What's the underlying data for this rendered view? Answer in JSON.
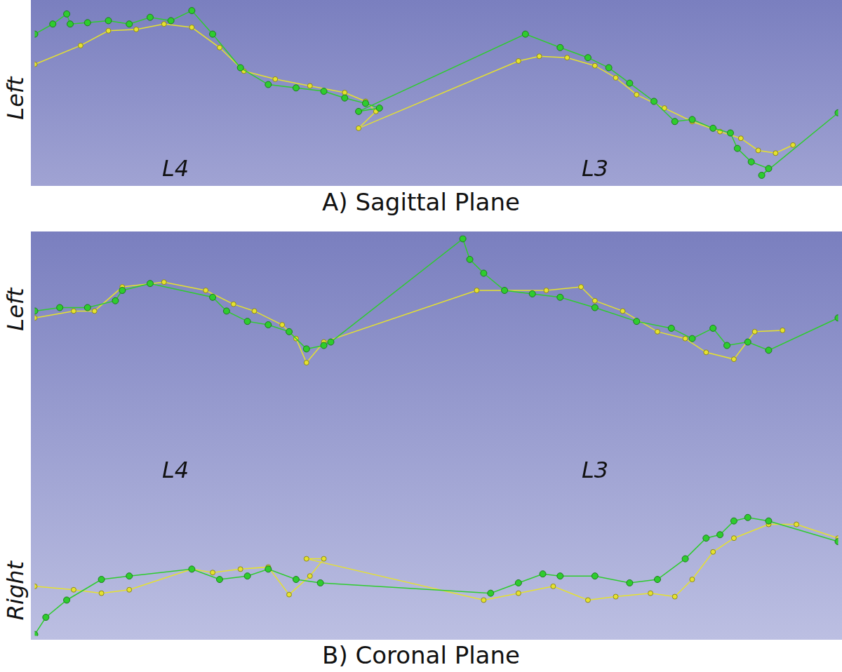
{
  "chart_data": [
    {
      "type": "scatter",
      "title": "A) Sagittal Plane",
      "side_labels": [
        "Left"
      ],
      "annotations": [
        "L4",
        "L3"
      ],
      "xlim": [
        0,
        1156
      ],
      "ylim": [
        0,
        265
      ],
      "tick_labels": false,
      "grid": false,
      "marker": "circle",
      "line_style": "solid",
      "series": [
        {
          "color": "#2ecc2e",
          "x": [
            0,
            26,
            46,
            51,
            76,
            106,
            136,
            166,
            196,
            226,
            256,
            296,
            336,
            376,
            416,
            446,
            476,
            496,
            466,
            706,
            756,
            796,
            826,
            856,
            891,
            921,
            946,
            976,
            1001,
            1011,
            1031,
            1056,
            1046,
            1156
          ],
          "values": [
            220,
            235,
            250,
            235,
            237,
            240,
            235,
            245,
            240,
            255,
            220,
            170,
            145,
            140,
            135,
            125,
            117,
            110,
            105,
            220,
            200,
            185,
            170,
            147,
            120,
            90,
            93,
            80,
            73,
            50,
            30,
            20,
            10,
            103
          ]
        },
        {
          "color": "#e6e22e",
          "x": [
            0,
            66,
            106,
            146,
            186,
            226,
            266,
            301,
            346,
            396,
            446,
            476,
            491,
            466,
            696,
            726,
            766,
            806,
            836,
            866,
            906,
            946,
            986,
            1016,
            1041,
            1066,
            1091
          ],
          "values": [
            175,
            203,
            225,
            227,
            235,
            230,
            200,
            165,
            153,
            143,
            133,
            120,
            105,
            80,
            180,
            187,
            185,
            173,
            155,
            130,
            110,
            90,
            75,
            65,
            47,
            43,
            55
          ]
        }
      ]
    },
    {
      "type": "scatter",
      "title": "B) Coronal Plane",
      "side_labels": [
        "Left",
        "Right"
      ],
      "annotations": [
        "L4",
        "L3"
      ],
      "xlim": [
        0,
        1156
      ],
      "ylim": [
        0,
        582
      ],
      "tick_labels": false,
      "grid": false,
      "marker": "circle",
      "line_style": "solid",
      "series": [
        {
          "color": "#2ecc2e",
          "x": [
            0,
            36,
            76,
            116,
            126,
            166,
            256,
            276,
            306,
            336,
            366,
            391,
            416,
            426,
            616,
            626,
            646,
            676,
            716,
            756,
            806,
            866,
            916,
            946,
            976,
            996,
            1026,
            1056,
            1156
          ],
          "values": [
            472,
            477,
            477,
            487,
            502,
            512,
            492,
            472,
            457,
            452,
            442,
            417,
            422,
            427,
            577,
            547,
            527,
            502,
            497,
            492,
            477,
            457,
            447,
            432,
            447,
            422,
            427,
            415,
            462
          ]
        },
        {
          "color": "#e6e22e",
          "x": [
            0,
            56,
            86,
            126,
            186,
            246,
            286,
            316,
            356,
            376,
            391,
            416,
            636,
            676,
            736,
            786,
            806,
            846,
            896,
            936,
            966,
            1006,
            1036,
            1076
          ],
          "values": [
            462,
            472,
            472,
            507,
            514,
            502,
            482,
            472,
            452,
            432,
            397,
            427,
            502,
            502,
            502,
            507,
            487,
            472,
            442,
            432,
            412,
            402,
            442,
            444
          ]
        },
        {
          "color": "#2ecc2e",
          "x": [
            0,
            16,
            46,
            96,
            136,
            226,
            266,
            306,
            336,
            376,
            411,
            656,
            696,
            731,
            756,
            806,
            856,
            896,
            936,
            966,
            986,
            1006,
            1026,
            1056,
            1156
          ],
          "values": [
            2,
            27,
            52,
            82,
            87,
            97,
            82,
            87,
            97,
            82,
            77,
            62,
            77,
            90,
            87,
            87,
            77,
            82,
            112,
            142,
            147,
            167,
            172,
            167,
            137
          ]
        },
        {
          "color": "#e6e22e",
          "x": [
            0,
            56,
            96,
            136,
            226,
            256,
            296,
            336,
            366,
            396,
            416,
            391,
            646,
            696,
            746,
            796,
            836,
            886,
            921,
            946,
            976,
            1006,
            1056,
            1096,
            1156
          ],
          "values": [
            72,
            67,
            62,
            67,
            97,
            92,
            97,
            100,
            60,
            87,
            112,
            112,
            52,
            62,
            72,
            52,
            57,
            62,
            57,
            82,
            122,
            142,
            162,
            162,
            142
          ]
        }
      ]
    }
  ]
}
